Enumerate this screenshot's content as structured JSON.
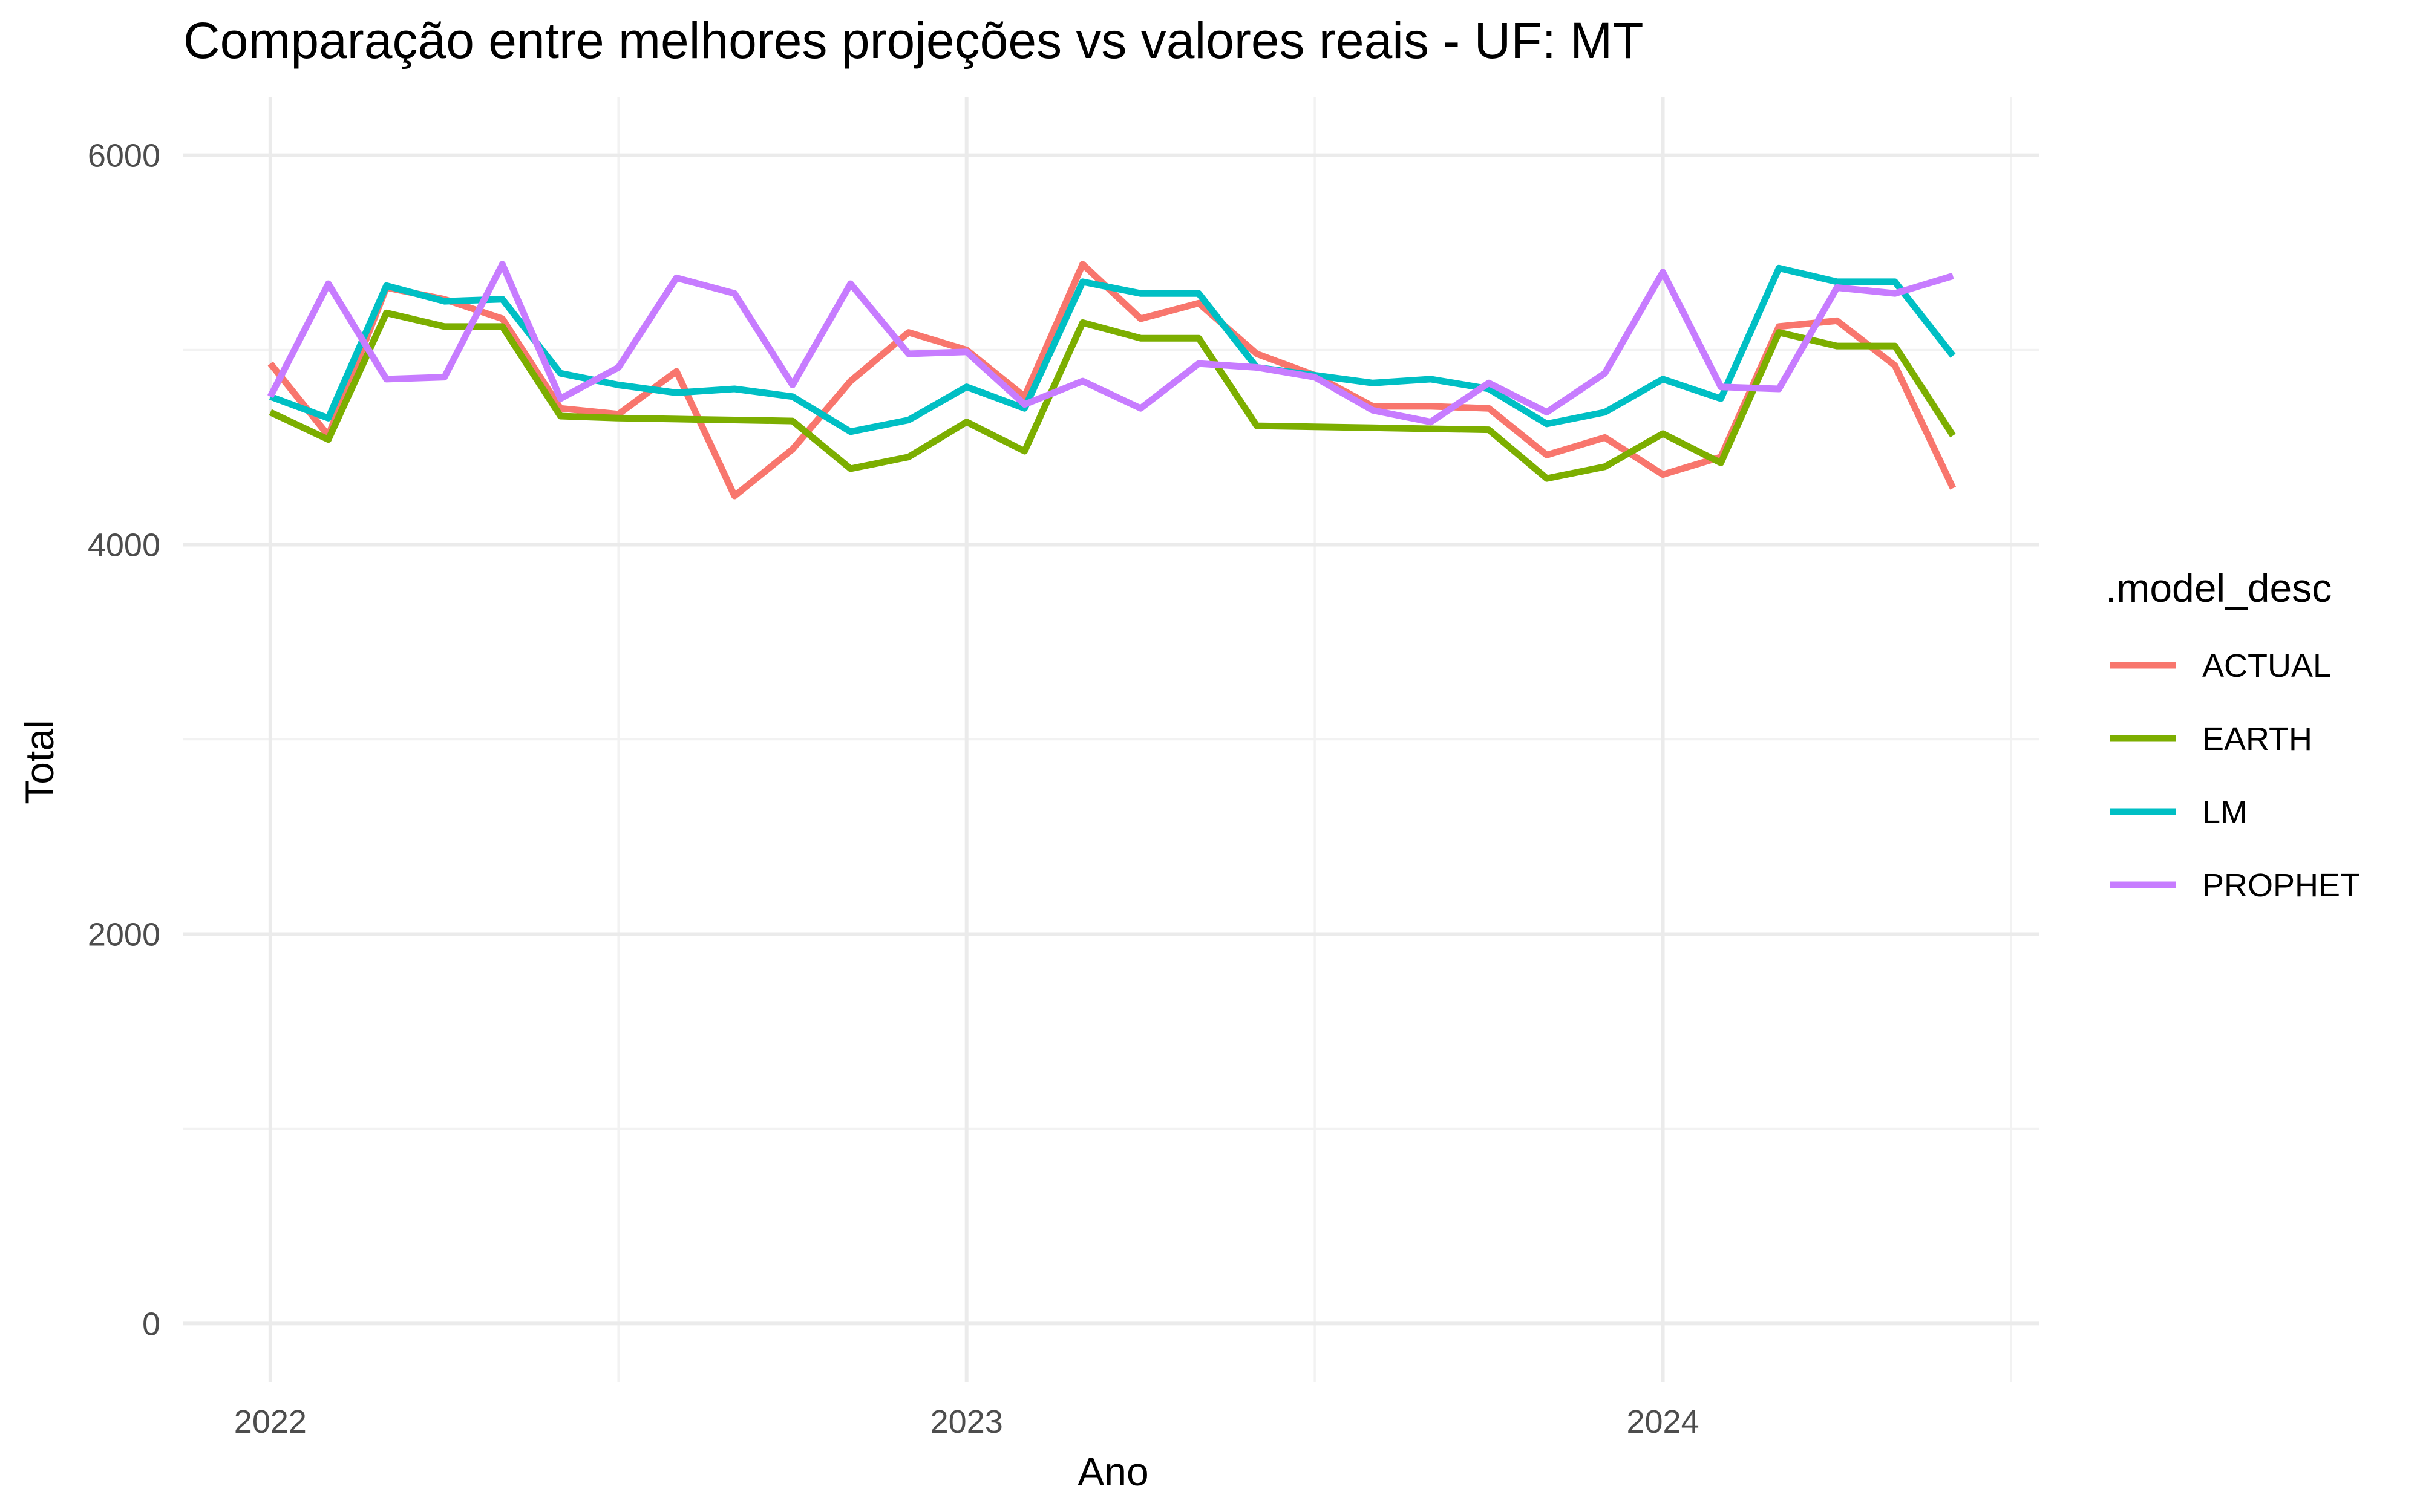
{
  "chart_data": {
    "type": "line",
    "title": "Comparação entre melhores projeções vs valores reais - UF: MT",
    "xlabel": "Ano",
    "ylabel": "Total",
    "x_ticks": [
      "2022",
      "2023",
      "2024"
    ],
    "y_ticks": [
      "0",
      "2000",
      "4000",
      "6000"
    ],
    "x_range": [
      2022.0,
      2024.5
    ],
    "ylim": [
      0,
      6000
    ],
    "grid": true,
    "legend": {
      "title": ".model_desc",
      "position": "right"
    },
    "x_dates": [
      "2022-01",
      "2022-02",
      "2022-03",
      "2022-04",
      "2022-05",
      "2022-06",
      "2022-07",
      "2022-08",
      "2022-09",
      "2022-10",
      "2022-11",
      "2022-12",
      "2023-01",
      "2023-02",
      "2023-03",
      "2023-04",
      "2023-05",
      "2023-06",
      "2023-07",
      "2023-08",
      "2023-09",
      "2023-10",
      "2023-11",
      "2023-12",
      "2024-01",
      "2024-02",
      "2024-03",
      "2024-04",
      "2024-05",
      "2024-06"
    ],
    "x": [
      2022.0,
      2022.0833,
      2022.1667,
      2022.25,
      2022.3333,
      2022.4167,
      2022.5,
      2022.5833,
      2022.6667,
      2022.75,
      2022.8333,
      2022.9167,
      2023.0,
      2023.0833,
      2023.1667,
      2023.25,
      2023.3333,
      2023.4167,
      2023.5,
      2023.5833,
      2023.6667,
      2023.75,
      2023.8333,
      2023.9167,
      2024.0,
      2024.0833,
      2024.1667,
      2024.25,
      2024.3333,
      2024.4167
    ],
    "series": [
      {
        "name": "ACTUAL",
        "color": "#F8766D",
        "values": [
          4930,
          4560,
          5320,
          5260,
          5160,
          4700,
          4670,
          4890,
          4250,
          4490,
          4840,
          5090,
          5000,
          4760,
          5440,
          5160,
          5240,
          4980,
          4870,
          4710,
          4710,
          4700,
          4460,
          4550,
          4360,
          4450,
          5120,
          5150,
          4920,
          4290
        ]
      },
      {
        "name": "EARTH",
        "color": "#7CAE00",
        "values": [
          4680,
          4540,
          5190,
          5120,
          5120,
          4660,
          4650,
          4645,
          4640,
          4635,
          4390,
          4450,
          4630,
          4480,
          5140,
          5060,
          5060,
          4610,
          4605,
          4600,
          4595,
          4590,
          4340,
          4400,
          4570,
          4420,
          5090,
          5020,
          5020,
          4560
        ]
      },
      {
        "name": "LM",
        "color": "#00BFC4",
        "values": [
          4760,
          4650,
          5330,
          5250,
          5260,
          4880,
          4820,
          4780,
          4800,
          4760,
          4580,
          4640,
          4810,
          4700,
          5350,
          5290,
          5290,
          4910,
          4870,
          4830,
          4850,
          4800,
          4620,
          4680,
          4850,
          4750,
          5420,
          5350,
          5350,
          4970
        ]
      },
      {
        "name": "PROPHET",
        "color": "#C77CFF",
        "values": [
          4760,
          5340,
          4850,
          4860,
          5440,
          4750,
          4910,
          5370,
          5290,
          4820,
          5340,
          4980,
          4990,
          4720,
          4840,
          4700,
          4930,
          4910,
          4860,
          4690,
          4630,
          4830,
          4680,
          4880,
          5400,
          4810,
          4800,
          5320,
          5290,
          5380
        ]
      }
    ]
  }
}
